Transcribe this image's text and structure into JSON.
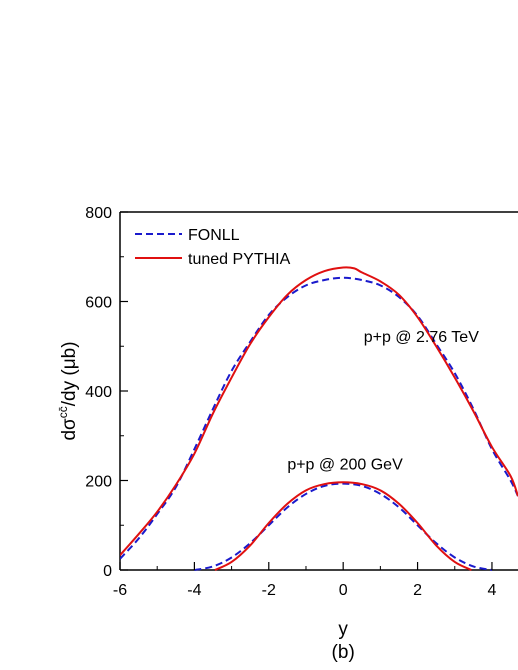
{
  "chart_data": {
    "type": "line",
    "xlabel": "y",
    "ylabel_main": "dσ",
    "ylabel_sup": "cc̄",
    "ylabel_rest": "/dy (μb)",
    "panel_label": "(b)",
    "xlim": [
      -6,
      4.7
    ],
    "ylim": [
      0,
      800
    ],
    "xticks": [
      -6,
      -4,
      -2,
      0,
      2,
      4
    ],
    "yticks": [
      0,
      200,
      400,
      600,
      800
    ],
    "legend_position": "top-left",
    "annotations": [
      {
        "text": "p+p @ 2.76 TeV",
        "x": 2.1,
        "y": 510
      },
      {
        "text": "p+p @ 200 GeV",
        "x": 0.05,
        "y": 225
      }
    ],
    "series": [
      {
        "name": "FONLL",
        "dash": true,
        "color": "#1a1acc",
        "x": [
          -6,
          -5.5,
          -5,
          -4.5,
          -4,
          -3.5,
          -3,
          -2.5,
          -2,
          -1.5,
          -1,
          -0.5,
          0,
          0.5,
          1,
          1.5,
          2,
          2.5,
          3,
          3.5,
          4,
          4.5,
          4.7
        ],
        "y": [
          25,
          70,
          125,
          185,
          270,
          360,
          445,
          510,
          570,
          610,
          636,
          648,
          653,
          648,
          636,
          610,
          568,
          505,
          440,
          360,
          270,
          200,
          165
        ]
      },
      {
        "name": "tuned PYTHIA",
        "dash": false,
        "color": "#e01010",
        "x": [
          -6,
          -5.5,
          -5,
          -4.5,
          -4,
          -3.5,
          -3,
          -2.5,
          -2,
          -1.5,
          -1,
          -0.5,
          0,
          0.3,
          0.5,
          1,
          1.5,
          2,
          2.5,
          3,
          3.5,
          4,
          4.5,
          4.7
        ],
        "y": [
          33,
          80,
          130,
          190,
          260,
          350,
          430,
          505,
          565,
          615,
          648,
          668,
          676,
          674,
          665,
          645,
          615,
          565,
          500,
          430,
          355,
          275,
          210,
          165
        ]
      },
      {
        "name": "",
        "dash": true,
        "color": "#1a1acc",
        "x": [
          -4,
          -3.5,
          -3,
          -2.5,
          -2,
          -1.5,
          -1,
          -0.5,
          0,
          0.5,
          1,
          1.5,
          2,
          2.5,
          3,
          3.5,
          4
        ],
        "y": [
          0,
          8,
          28,
          60,
          100,
          140,
          170,
          188,
          193,
          188,
          170,
          140,
          100,
          60,
          28,
          8,
          0
        ]
      },
      {
        "name": "",
        "dash": false,
        "color": "#e01010",
        "x": [
          -3.45,
          -3,
          -2.5,
          -2,
          -1.5,
          -1,
          -0.5,
          0,
          0.5,
          1,
          1.5,
          2,
          2.5,
          3,
          3.45
        ],
        "y": [
          0,
          18,
          55,
          105,
          148,
          178,
          192,
          196,
          192,
          178,
          148,
          105,
          55,
          18,
          0
        ]
      }
    ]
  }
}
